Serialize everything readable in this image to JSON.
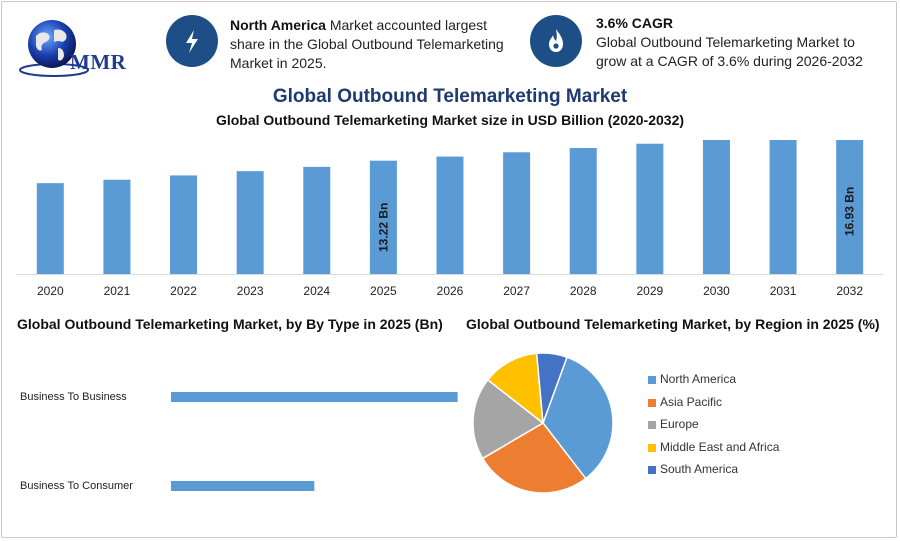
{
  "logo": {
    "text": "MMR",
    "icon": "globe-icon"
  },
  "info_left": {
    "bold": "North America",
    "text": " Market accounted largest share in the Global Outbound Telemarketing Market in 2025.",
    "icon": "lightning-icon"
  },
  "info_right": {
    "bold": "3.6% CAGR",
    "text": "Global Outbound Telemarketing Market to grow at a CAGR of 3.6% during 2026-2032",
    "icon": "flame-icon"
  },
  "colors": {
    "bar": "#5b9bd5",
    "navy": "#1d4f86",
    "title": "#1e3a6e"
  },
  "chart_data": [
    {
      "type": "bar",
      "title": "Global Outbound Telemarketing Market",
      "subtitle": "Global Outbound Telemarketing Market size in USD Billion (2020-2032)",
      "categories": [
        "2020",
        "2021",
        "2022",
        "2023",
        "2024",
        "2025",
        "2026",
        "2027",
        "2028",
        "2029",
        "2030",
        "2031",
        "2032"
      ],
      "values": [
        10.6,
        11.0,
        11.5,
        12.0,
        12.5,
        13.22,
        13.7,
        14.2,
        14.7,
        15.2,
        15.8,
        16.3,
        16.93
      ],
      "data_labels": {
        "5": "13.22 Bn",
        "12": "16.93 Bn"
      },
      "ylim": [
        0,
        17.5
      ],
      "grid": false
    },
    {
      "type": "bar",
      "orientation": "horizontal",
      "title": "Global Outbound Telemarketing Market, by By Type in 2025 (Bn)",
      "categories": [
        "Business To Business",
        "Business To Consumer"
      ],
      "values": [
        8.6,
        4.3
      ],
      "xlim": [
        0,
        9
      ]
    },
    {
      "type": "pie",
      "title": "Global Outbound Telemarketing Market, by Region in 2025 (%)",
      "legend_position": "right",
      "slices": [
        {
          "label": "North America",
          "value": 34,
          "color": "#5b9bd5"
        },
        {
          "label": "Asia Pacific",
          "value": 27,
          "color": "#ed7d31"
        },
        {
          "label": "Europe",
          "value": 19,
          "color": "#a5a5a5"
        },
        {
          "label": "Middle East and Africa",
          "value": 13,
          "color": "#ffc000"
        },
        {
          "label": "South America",
          "value": 7,
          "color": "#4472c4"
        }
      ]
    }
  ]
}
